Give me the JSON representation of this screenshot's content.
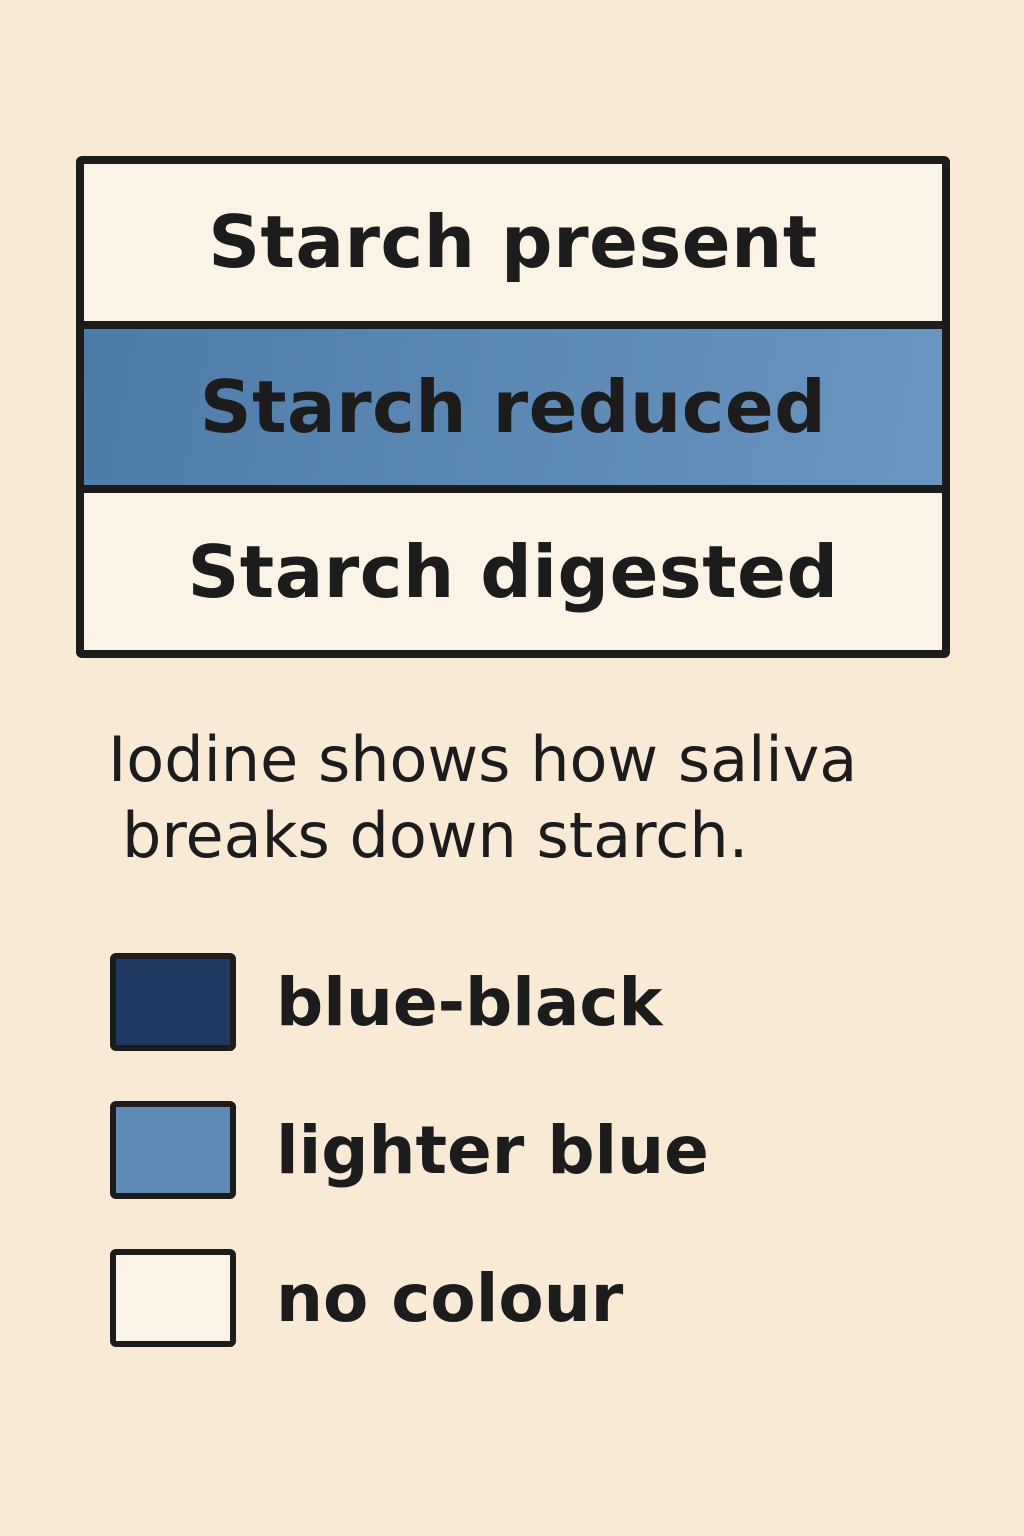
{
  "colors": {
    "background": "#f8ead5",
    "stroke": "#1c1c1c",
    "blue_black": "#1e3a60",
    "lighter_blue": "#5f8ab6",
    "no_colour": "#fbf4e6"
  },
  "stages": [
    {
      "label": "Starch present",
      "fill": "#fbf4e6"
    },
    {
      "label": "Starch reduced",
      "fill": "linear-gradient(100deg, #4f7ba8 0%, #6a95c0 100%)"
    },
    {
      "label": "Starch digested",
      "fill": "#fbf4e6"
    }
  ],
  "caption": {
    "line1": "Iodine shows how saliva",
    "line2": "breaks down starch."
  },
  "key": [
    {
      "label": "blue-black",
      "swatch": "#1e3a60"
    },
    {
      "label": "lighter blue",
      "swatch": "#5f8ab6"
    },
    {
      "label": "no colour",
      "swatch": "#fbf4e6"
    }
  ]
}
